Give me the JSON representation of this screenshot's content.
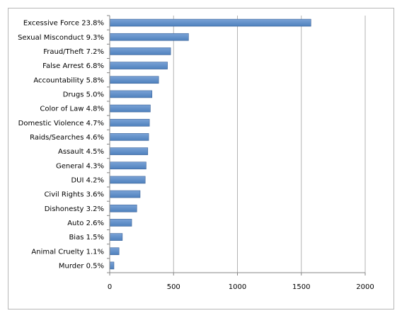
{
  "chart_data": {
    "type": "bar",
    "orientation": "horizontal",
    "title": "",
    "xlabel": "",
    "ylabel": "",
    "categories": [
      "Excessive Force 23.8%",
      "Sexual Misconduct 9.3%",
      "Fraud/Theft 7.2%",
      "False Arrest 6.8%",
      "Accountability 5.8%",
      "Drugs 5.0%",
      "Color of Law 4.8%",
      "Domestic Violence 4.7%",
      "Raids/Searches 4.6%",
      "Assault 4.5%",
      "General 4.3%",
      "DUI 4.2%",
      "Civil Rights  3.6%",
      "Dishonesty 3.2%",
      "Auto 2.6%",
      "Bias 1.5%",
      "Animal Cruelty 1.1%",
      "Murder 0.5%"
    ],
    "values": [
      1575,
      617,
      477,
      452,
      383,
      331,
      318,
      311,
      305,
      298,
      285,
      278,
      238,
      212,
      172,
      99,
      73,
      33
    ],
    "xlim": [
      0,
      2000
    ],
    "xticks": [
      "0",
      "500",
      "1000",
      "1500",
      "2000"
    ],
    "grid": "vertical",
    "legend": "none",
    "colors": {
      "bar_fill": "#4f81bd",
      "bar_fill_light": "#7aa2d6",
      "bar_edge": "#3a6298",
      "grid": "#b3b3b3",
      "axis": "#868686",
      "frame": "#b7b7b7"
    }
  }
}
